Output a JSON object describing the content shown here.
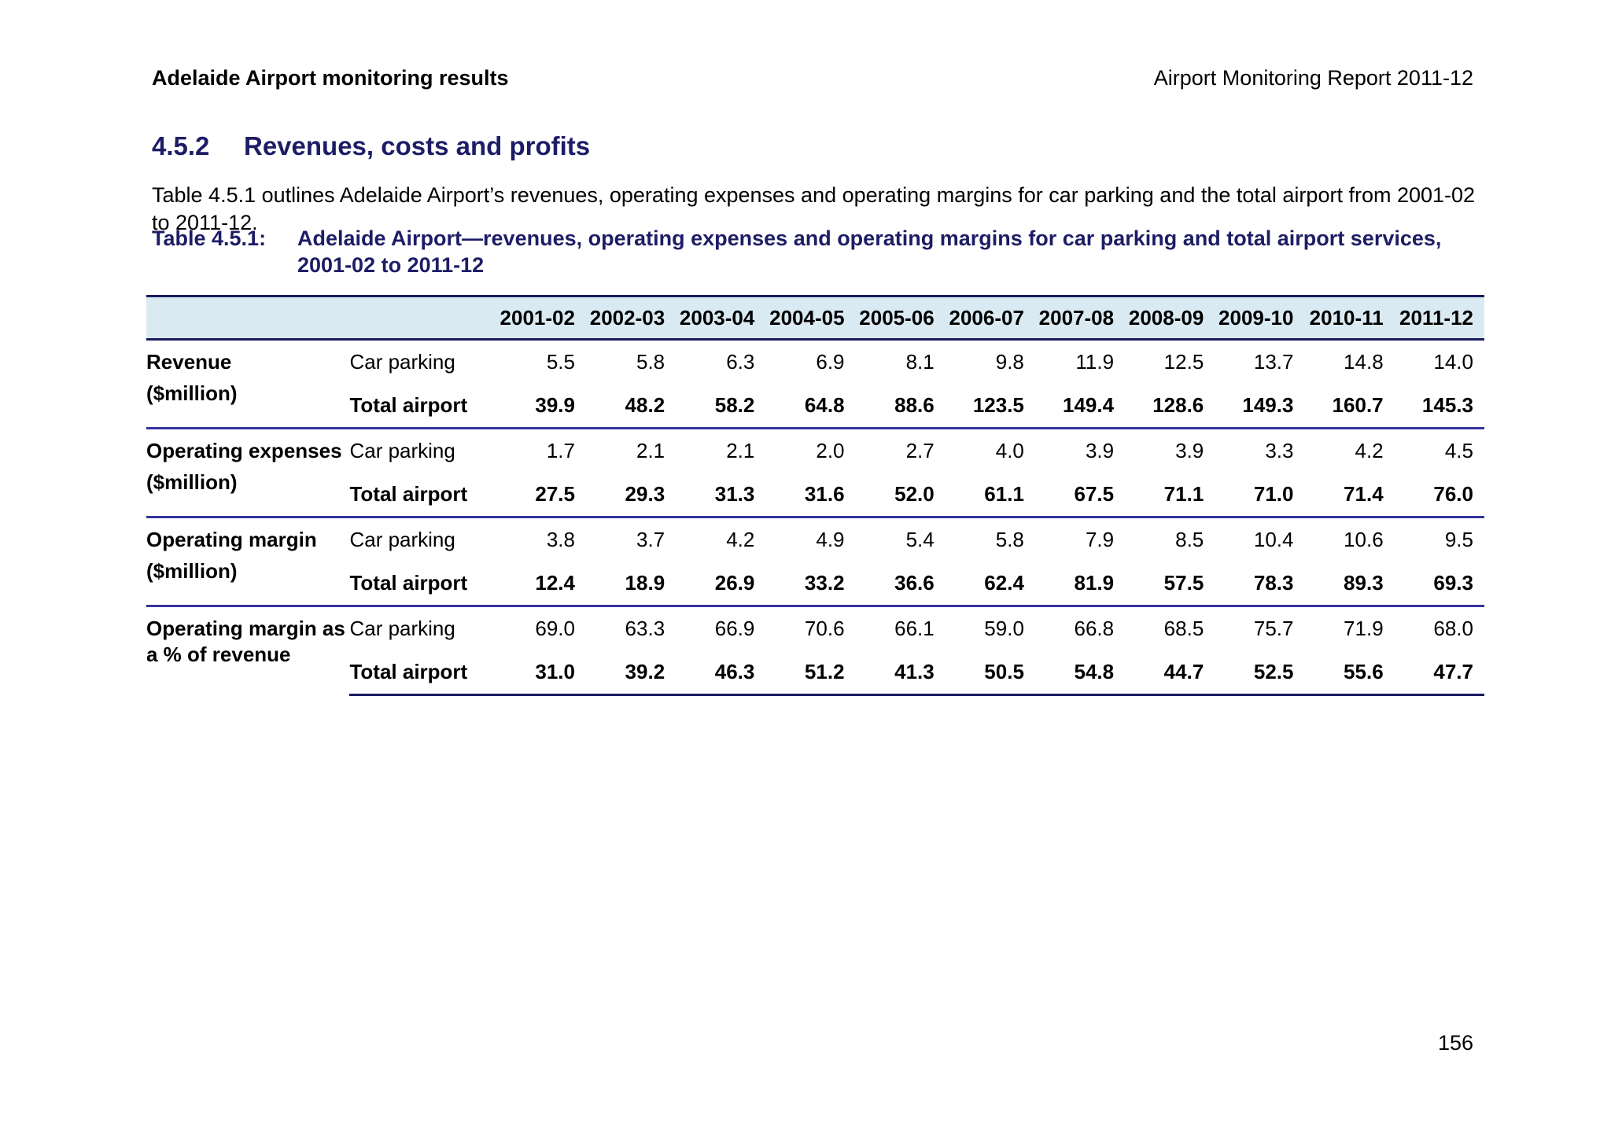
{
  "header": {
    "left": "Adelaide Airport monitoring results",
    "right": "Airport Monitoring Report 2011-12"
  },
  "section_heading": {
    "number": "4.5.2",
    "title": "Revenues, costs and profits"
  },
  "paragraph": "Table 4.5.1 outlines Adelaide Airport’s revenues, operating expenses and operating margins for car parking and the total airport from 2001-02 to 2011-12.",
  "table": {
    "label": "Table 4.5.1:",
    "caption_lines": [
      "Adelaide Airport—revenues, operating expenses and operating margins for car parking and total airport services,",
      "2001-02 to 2011-12"
    ],
    "year_columns": [
      "2001-02",
      "2002-03",
      "2003-04",
      "2004-05",
      "2005-06",
      "2006-07",
      "2007-08",
      "2008-09",
      "2009-10",
      "2010-11",
      "2011-12"
    ],
    "sections": [
      {
        "label_lines": [
          "Revenue",
          "($million)"
        ],
        "label_layout": "spread",
        "rows": [
          {
            "label": "Car parking",
            "emphasis": false,
            "values": [
              "5.5",
              "5.8",
              "6.3",
              "6.9",
              "8.1",
              "9.8",
              "11.9",
              "12.5",
              "13.7",
              "14.8",
              "14.0"
            ]
          },
          {
            "label": "Total airport",
            "emphasis": true,
            "values": [
              "39.9",
              "48.2",
              "58.2",
              "64.8",
              "88.6",
              "123.5",
              "149.4",
              "128.6",
              "149.3",
              "160.7",
              "145.3"
            ]
          }
        ]
      },
      {
        "label_lines": [
          "Operating expenses",
          "($million)"
        ],
        "label_layout": "spread",
        "rows": [
          {
            "label": "Car parking",
            "emphasis": false,
            "values": [
              "1.7",
              "2.1",
              "2.1",
              "2.0",
              "2.7",
              "4.0",
              "3.9",
              "3.9",
              "3.3",
              "4.2",
              "4.5"
            ]
          },
          {
            "label": "Total airport",
            "emphasis": true,
            "values": [
              "27.5",
              "29.3",
              "31.3",
              "31.6",
              "52.0",
              "61.1",
              "67.5",
              "71.1",
              "71.0",
              "71.4",
              "76.0"
            ]
          }
        ]
      },
      {
        "label_lines": [
          "Operating margin",
          "($million)"
        ],
        "label_layout": "spread",
        "rows": [
          {
            "label": "Car parking",
            "emphasis": false,
            "values": [
              "3.8",
              "3.7",
              "4.2",
              "4.9",
              "5.4",
              "5.8",
              "7.9",
              "8.5",
              "10.4",
              "10.6",
              "9.5"
            ]
          },
          {
            "label": "Total airport",
            "emphasis": true,
            "values": [
              "12.4",
              "18.9",
              "26.9",
              "33.2",
              "36.6",
              "62.4",
              "81.9",
              "57.5",
              "78.3",
              "89.3",
              "69.3"
            ]
          }
        ]
      },
      {
        "label_lines": [
          "Operating margin as",
          "a % of revenue"
        ],
        "label_layout": "tight",
        "rows": [
          {
            "label": "Car parking",
            "emphasis": false,
            "values": [
              "69.0",
              "63.3",
              "66.9",
              "70.6",
              "66.1",
              "59.0",
              "66.8",
              "68.5",
              "75.7",
              "71.9",
              "68.0"
            ]
          },
          {
            "label": "Total airport",
            "emphasis": true,
            "values": [
              "31.0",
              "39.2",
              "46.3",
              "51.2",
              "41.3",
              "50.5",
              "54.8",
              "44.7",
              "52.5",
              "55.6",
              "47.7"
            ]
          }
        ]
      }
    ]
  },
  "page_number": "156",
  "colors": {
    "heading": "#1d1d66",
    "table_header_bg": "#d9eaf2",
    "border_dark": "#1b1b60",
    "border_separator": "#34349e"
  }
}
